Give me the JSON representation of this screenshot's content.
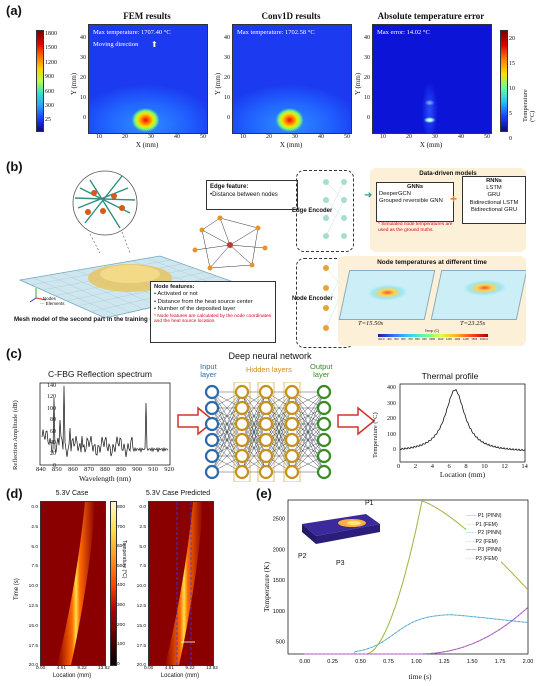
{
  "panel_labels": {
    "a": "(a)",
    "b": "(b)",
    "c": "(c)",
    "d": "(d)",
    "e": "(e)"
  },
  "a": {
    "titles": [
      "FEM results",
      "Conv1D results",
      "Absolute temperature error"
    ],
    "fem_text": [
      "Max temperature: 1707.40 °C",
      "Moving direction"
    ],
    "conv_text": "Max temperature: 1702.58 °C",
    "err_text": "Max error: 14.02 °C",
    "xlabel": "X (mm)",
    "ylabel": "Y (mm)",
    "xticks": [
      "10",
      "20",
      "30",
      "40",
      "50"
    ],
    "yticks": [
      "0",
      "10",
      "20",
      "30",
      "40"
    ],
    "cbar1_ticks": [
      "1800",
      "1500",
      "1200",
      "900",
      "600",
      "300",
      "25"
    ],
    "cbar2_ticks": [
      "20",
      "15",
      "10",
      "5",
      "0"
    ],
    "cbar2_label": "Temperature (°C)",
    "colors": {
      "hot": "#ff2a00",
      "cold": "#1e3cff"
    }
  },
  "b": {
    "edge_feature_title": "Edge feature:",
    "edge_feature_item": "•Distance between nodes",
    "node_features_title": "Node features:",
    "node_features": [
      "• Activated or not",
      "• Distance from the heat source center",
      "• Number of the deposited layer"
    ],
    "node_note": "* Node features are calculated by the node coordinates and the heat source location.",
    "legend": [
      "Nodes",
      "Elements"
    ],
    "mesh_caption": "Mesh model of the second part in the training dataset (Please see Appendix)",
    "edge_encoder": "Edge Encoder",
    "node_encoder": "Node Encoder",
    "data_driven": "Data-driven models",
    "gnns_title": "GNNs",
    "gnns": [
      "DeeperGCN",
      "Grouped reversible GNN"
    ],
    "rnns_title": "RNNs",
    "rnns": [
      "LSTM",
      "GRU",
      "Bidirectional LSTM",
      "Bidirectional GRU"
    ],
    "sim_note": "* Simulated node temperatures are used as the ground truths.",
    "node_temps_title": "Node temperatures at different time",
    "t1": "T=15.50s",
    "t2": "T=23.25s",
    "temp_label": "Temp (C)",
    "temp_ticks": [
      "300.0",
      "400",
      "500",
      "600",
      "700",
      "800",
      "900",
      "1000",
      "1100",
      "1200",
      "1300",
      "1400",
      "1500",
      "1616.9"
    ]
  },
  "c": {
    "dnn_title": "Deep neural network",
    "input_layer": [
      "Input",
      "layer"
    ],
    "hidden_layers": "Hidden layers",
    "output_layer": [
      "Output",
      "layer"
    ],
    "left_title": "C-FBG Reflection spectrum",
    "left_xlabel": "Wavelength (nm)",
    "left_ylabel": "Reflection Amplitude (dB)",
    "left_xticks": [
      "840",
      "850",
      "860",
      "870",
      "880",
      "890",
      "900",
      "910",
      "920"
    ],
    "left_yticks": [
      "0",
      "20",
      "40",
      "60",
      "80",
      "100",
      "120",
      "140"
    ],
    "right_title": "Thermal profile",
    "right_xlabel": "Location (mm)",
    "right_ylabel": "Temperature (°C)",
    "right_xticks": [
      "0",
      "2",
      "4",
      "6",
      "8",
      "10",
      "12",
      "14"
    ],
    "right_yticks": [
      "0",
      "100",
      "200",
      "300",
      "400"
    ]
  },
  "d": {
    "title1": "5.3V Case",
    "title2": "5.3V Case Predicted",
    "xlabel": "Location (mm)",
    "ylabel": "Time (s)",
    "xticks": [
      "0.00",
      "4.61",
      "9.22",
      "13.82"
    ],
    "yticks": [
      "0.0",
      "2.5",
      "5.0",
      "7.5",
      "10.0",
      "12.5",
      "15.0",
      "17.5",
      "20.0"
    ],
    "cbar_ticks": [
      "800",
      "700",
      "600",
      "500",
      "400",
      "300",
      "200",
      "100",
      "0"
    ],
    "cbar_label": "Temperature (°C)"
  },
  "e": {
    "ylabel": "Temperature (K)",
    "xlabel": "time (s)",
    "xticks": [
      "0.00",
      "0.25",
      "0.50",
      "0.75",
      "1.00",
      "1.25",
      "1.50",
      "1.75",
      "2.00"
    ],
    "yticks": [
      "500",
      "1000",
      "1500",
      "2000",
      "2500"
    ],
    "point_labels": [
      "P1",
      "P2",
      "P3"
    ],
    "legend": [
      "P1 (PINN)",
      "P1 (FEM)",
      "P2 (PINN)",
      "P2 (FEM)",
      "P3 (PINN)",
      "P3 (FEM)"
    ]
  }
}
